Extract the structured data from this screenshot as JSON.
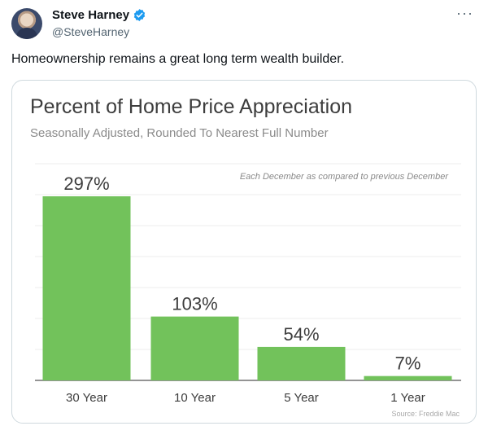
{
  "tweet": {
    "display_name": "Steve Harney",
    "handle": "@SteveHarney",
    "verified": true,
    "more_label": "···",
    "text": "Homeownership remains a great long term wealth builder."
  },
  "colors": {
    "bar": "#72c25b",
    "verified": "#1d9bf0",
    "title": "#3d3d3d",
    "subtitle": "#8a8a8a"
  },
  "chart_data": {
    "type": "bar",
    "title": "Percent of Home Price Appreciation",
    "subtitle": "Seasonally Adjusted, Rounded To Nearest Full Number",
    "annotation": "Each December as compared to previous December",
    "source": "Source: Freddie Mac",
    "categories": [
      "30 Year",
      "10 Year",
      "5 Year",
      "1 Year"
    ],
    "values": [
      297,
      103,
      54,
      7
    ],
    "value_labels": [
      "297%",
      "103%",
      "54%",
      "7%"
    ],
    "ylim": [
      0,
      297
    ],
    "grid": true,
    "xlabel": "",
    "ylabel": ""
  }
}
